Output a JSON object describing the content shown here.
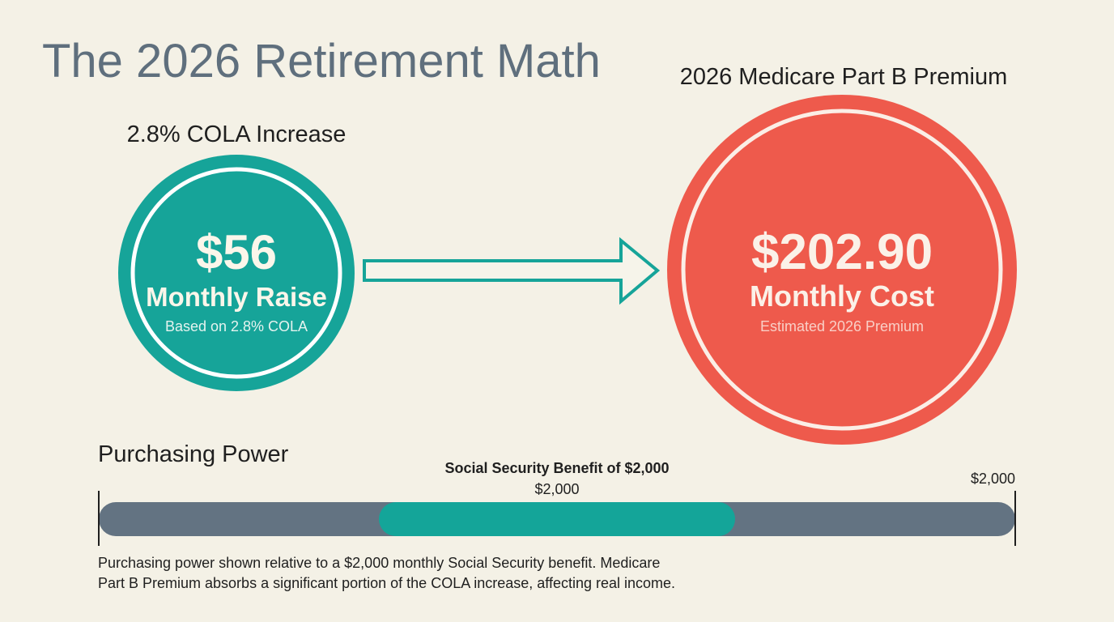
{
  "title": "The 2026 Retirement Math",
  "cola": {
    "heading": "2.8% COLA Increase",
    "amount": "$56",
    "label": "Monthly Raise",
    "note": "Based on 2.8% COLA"
  },
  "medicare": {
    "heading": "2026 Medicare Part B Premium",
    "amount": "$202.90",
    "label": "Monthly Cost",
    "note": "Estimated 2026 Premium"
  },
  "purchasing_power": {
    "heading": "Purchasing Power",
    "bar_title": "Social Security Benefit of $2,000",
    "bar_center_label": "$2,000",
    "bar_end_label": "$2,000",
    "caption": [
      "Purchasing power shown relative to a $2,000 monthly Social Security benefit. Medicare",
      "Part B Premium absorbs a significant portion of the COLA increase, affecting real income."
    ]
  }
}
